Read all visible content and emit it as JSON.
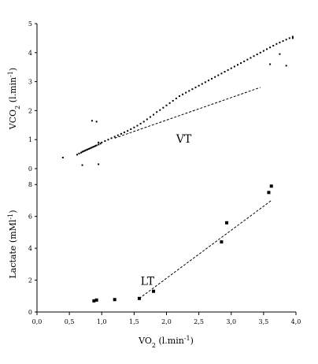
{
  "chart_data": [
    {
      "type": "scatter",
      "ylabel_main": "VCO",
      "ylabel_sub": "2",
      "ylabel_tail": " (l.min",
      "ylabel_sup": "-1",
      "ylabel_end": ")",
      "ylim": [
        0,
        5
      ],
      "yticks": [
        "0",
        "1",
        "2",
        "3",
        "4",
        "5"
      ],
      "annotation": "VT",
      "annotation_point": [
        2.15,
        0.9
      ],
      "fit_line": [
        [
          1.2,
          1.05
        ],
        [
          3.45,
          2.8
        ]
      ],
      "series": [
        {
          "x": [
            0.4,
            0.62,
            0.65,
            0.68,
            0.7,
            0.72,
            0.74,
            0.76,
            0.78,
            0.8,
            0.82,
            0.84,
            0.86,
            0.88,
            0.9,
            0.92,
            0.95,
            0.98,
            1.0,
            1.05,
            1.1,
            1.15,
            1.2,
            1.25,
            1.3,
            1.35,
            1.4,
            1.45,
            1.5,
            1.55,
            1.6,
            1.65,
            1.7,
            1.75,
            1.8,
            1.85,
            1.9,
            1.95,
            2.0,
            2.05,
            2.1,
            2.15,
            2.2,
            2.25,
            2.3,
            2.35,
            2.4,
            2.45,
            2.5,
            2.55,
            2.6,
            2.65,
            2.7,
            2.75,
            2.8,
            2.85,
            2.9,
            2.95,
            3.0,
            3.05,
            3.1,
            3.15,
            3.2,
            3.25,
            3.3,
            3.35,
            3.4,
            3.45,
            3.5,
            3.55,
            3.6,
            3.65,
            3.7,
            3.75,
            3.8,
            3.85,
            3.9,
            3.95,
            0.85,
            0.92,
            0.95,
            0.95,
            0.7,
            3.6,
            3.75,
            3.95,
            3.85
          ],
          "y": [
            0.38,
            0.48,
            0.52,
            0.55,
            0.58,
            0.6,
            0.62,
            0.64,
            0.66,
            0.68,
            0.7,
            0.72,
            0.74,
            0.76,
            0.78,
            0.8,
            0.83,
            0.86,
            0.9,
            0.95,
            1.0,
            1.05,
            1.1,
            1.15,
            1.2,
            1.25,
            1.3,
            1.36,
            1.42,
            1.48,
            1.55,
            1.62,
            1.7,
            1.78,
            1.86,
            1.95,
            2.02,
            2.1,
            2.18,
            2.26,
            2.34,
            2.42,
            2.5,
            2.56,
            2.62,
            2.68,
            2.74,
            2.8,
            2.86,
            2.92,
            2.98,
            3.04,
            3.1,
            3.16,
            3.22,
            3.28,
            3.34,
            3.4,
            3.46,
            3.52,
            3.58,
            3.64,
            3.7,
            3.76,
            3.82,
            3.88,
            3.94,
            4.0,
            4.06,
            4.12,
            4.18,
            4.24,
            4.3,
            4.35,
            4.4,
            4.45,
            4.5,
            4.55,
            1.65,
            1.62,
            0.15,
            0.9,
            0.12,
            3.6,
            3.95,
            4.5,
            3.55
          ]
        }
      ]
    },
    {
      "type": "scatter",
      "ylabel_main": "Lactate (mMl",
      "ylabel_sup": "-1",
      "ylabel_end": ")",
      "ylim": [
        0,
        9
      ],
      "yticks": [
        "0",
        "2",
        "4",
        "6",
        "8"
      ],
      "annotation": "LT",
      "annotation_point": [
        1.6,
        1.7
      ],
      "fit_line": [
        [
          1.58,
          0.85
        ],
        [
          3.62,
          7.0
        ]
      ],
      "series": [
        {
          "x": [
            0.88,
            0.92,
            1.2,
            1.58,
            1.8,
            2.85,
            2.93,
            3.58,
            3.62
          ],
          "y": [
            0.7,
            0.75,
            0.78,
            0.85,
            1.3,
            4.4,
            5.6,
            7.5,
            7.9
          ]
        }
      ]
    }
  ],
  "xaxis": {
    "xlim": [
      0.0,
      4.0
    ],
    "xticks": [
      "0,0",
      "0,5",
      "1,0",
      "1,5",
      "2,0",
      "2,5",
      "3,0",
      "3,5",
      "4,0"
    ],
    "xlabel_main": "VO",
    "xlabel_sub": "2",
    "xlabel_tail": " (l.min",
    "xlabel_sup": "-1",
    "xlabel_end": ")"
  }
}
